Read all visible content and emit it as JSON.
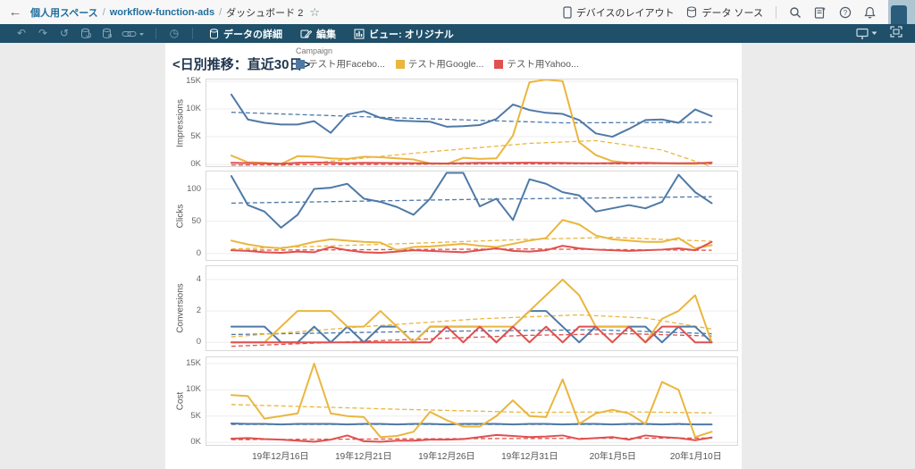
{
  "topbar": {
    "back": "←",
    "breadcrumb": {
      "item1": "個人用スペース",
      "sep1": "/",
      "item2": "workflow-function-ads",
      "sep2": "/",
      "current": "ダッシュボード 2"
    },
    "star": "☆",
    "device_layout": "デバイスのレイアウト",
    "data_source": "データ ソース",
    "icons": [
      "device-icon",
      "datasource-icon",
      "search-icon",
      "notebook-icon",
      "help-icon",
      "bell-icon",
      "avatar"
    ]
  },
  "toolbar": {
    "left_icons": [
      "undo-icon",
      "redo-icon",
      "revert-icon",
      "refresh-datasource-icon",
      "pause-datasource-icon",
      "link-icon",
      "performance-icon"
    ],
    "data_details_label": "データの詳細",
    "edit_label": "編集",
    "view_label": "ビュー: オリジナル",
    "right_icons": [
      "present-icon",
      "fullscreen-icon"
    ],
    "bg_color": "#1f4f69"
  },
  "view": {
    "title": "<日別推移：直近30日>",
    "legend_title": "Campaign",
    "legend": [
      {
        "label": "テスト用Facebo...",
        "color": "#4e79a7"
      },
      {
        "label": "テスト用Google...",
        "color": "#eab63e"
      },
      {
        "label": "テスト用Yahoo...",
        "color": "#e0504e"
      }
    ]
  },
  "x_axis": {
    "labels": [
      "19年12月16日",
      "19年12月21日",
      "19年12月26日",
      "19年12月31日",
      "20年1月5日",
      "20年1月10日"
    ],
    "label_indices": [
      3,
      8,
      13,
      18,
      23,
      28
    ]
  },
  "chart_data": [
    {
      "type": "line",
      "title": "Impressions",
      "ylabel": "Impressions",
      "ylim": [
        -300,
        15300
      ],
      "grid": true,
      "ticks": [
        {
          "value": 15000,
          "label": "15K"
        },
        {
          "value": 10000,
          "label": "10K"
        },
        {
          "value": 5000,
          "label": "5K"
        },
        {
          "value": 0,
          "label": "0K"
        }
      ],
      "series": [
        {
          "name": "テスト用Facebo...",
          "color": "#4e79a7",
          "values": [
            12600,
            8100,
            7500,
            7200,
            7200,
            7800,
            5700,
            9000,
            9600,
            8400,
            7900,
            7800,
            7700,
            6800,
            6900,
            7100,
            8200,
            10800,
            9800,
            9300,
            9100,
            8000,
            5600,
            5000,
            6400,
            8000,
            8100,
            7500,
            9900,
            8700
          ],
          "trend": [
            [
              0,
              9400
            ],
            [
              10,
              8400
            ],
            [
              20,
              7500
            ],
            [
              29,
              7600
            ]
          ]
        },
        {
          "name": "テスト用Google...",
          "color": "#eab63e",
          "values": [
            1600,
            400,
            300,
            100,
            1500,
            1400,
            1100,
            1000,
            1400,
            1300,
            1100,
            900,
            200,
            100,
            1200,
            1000,
            1100,
            5200,
            14800,
            15300,
            15000,
            4000,
            1700,
            600,
            300,
            250,
            200,
            150,
            100,
            400
          ],
          "trend": [
            [
              0,
              -1000
            ],
            [
              6,
              600
            ],
            [
              12,
              2300
            ],
            [
              18,
              3800
            ],
            [
              22,
              4300
            ],
            [
              26,
              2600
            ],
            [
              29,
              -400
            ]
          ]
        },
        {
          "name": "テスト用Yahoo...",
          "color": "#e0504e",
          "values": [
            300,
            250,
            200,
            150,
            300,
            350,
            300,
            250,
            300,
            280,
            260,
            240,
            200,
            180,
            250,
            300,
            280,
            300,
            320,
            300,
            280,
            250,
            220,
            250,
            280,
            300,
            250,
            220,
            250,
            300
          ],
          "trend": [
            [
              0,
              -100
            ],
            [
              15,
              100
            ],
            [
              29,
              150
            ]
          ]
        }
      ]
    },
    {
      "type": "line",
      "title": "Clicks",
      "ylabel": "Clicks",
      "ylim": [
        -10,
        127
      ],
      "grid": true,
      "ticks": [
        {
          "value": 100,
          "label": "100"
        },
        {
          "value": 50,
          "label": "50"
        },
        {
          "value": 0,
          "label": "0"
        }
      ],
      "series": [
        {
          "name": "テスト用Facebo...",
          "color": "#4e79a7",
          "values": [
            120,
            75,
            65,
            40,
            60,
            100,
            102,
            108,
            85,
            80,
            72,
            60,
            85,
            125,
            125,
            73,
            85,
            52,
            115,
            108,
            95,
            90,
            65,
            70,
            75,
            70,
            80,
            122,
            95,
            78
          ],
          "trend": [
            [
              0,
              78
            ],
            [
              15,
              84
            ],
            [
              29,
              88
            ]
          ]
        },
        {
          "name": "テスト用Google...",
          "color": "#eab63e",
          "values": [
            20,
            14,
            10,
            8,
            12,
            18,
            22,
            20,
            18,
            17,
            5,
            10,
            11,
            13,
            15,
            12,
            10,
            15,
            20,
            24,
            52,
            45,
            28,
            22,
            20,
            18,
            18,
            24,
            8,
            13
          ],
          "trend": [
            [
              0,
              7
            ],
            [
              10,
              15
            ],
            [
              18,
              22
            ],
            [
              23,
              25
            ],
            [
              29,
              19
            ]
          ]
        },
        {
          "name": "テスト用Yahoo...",
          "color": "#e0504e",
          "values": [
            5,
            4,
            2,
            1,
            3,
            2,
            10,
            5,
            2,
            1,
            3,
            5,
            4,
            3,
            2,
            5,
            8,
            4,
            3,
            5,
            12,
            8,
            6,
            5,
            4,
            5,
            6,
            8,
            5,
            18
          ],
          "trend": [
            [
              0,
              5
            ],
            [
              18,
              7
            ],
            [
              29,
              5
            ]
          ]
        }
      ]
    },
    {
      "type": "line",
      "title": "Conversions",
      "ylabel": "Conversions",
      "ylim": [
        -0.5,
        4.85
      ],
      "grid": true,
      "ticks": [
        {
          "value": 4,
          "label": "4"
        },
        {
          "value": 2,
          "label": "2"
        },
        {
          "value": 0,
          "label": "0"
        }
      ],
      "series": [
        {
          "name": "テスト用Facebo...",
          "color": "#4e79a7",
          "values": [
            1,
            1,
            1,
            0,
            0,
            1,
            0,
            1,
            0,
            1,
            1,
            0,
            1,
            1,
            1,
            1,
            0,
            1,
            2,
            2,
            1,
            0,
            1,
            1,
            1,
            1,
            0,
            1,
            1,
            0
          ],
          "trend": [
            [
              0,
              0.5
            ],
            [
              12,
              0.7
            ],
            [
              22,
              0.8
            ],
            [
              29,
              0.55
            ]
          ]
        },
        {
          "name": "テスト用Google...",
          "color": "#eab63e",
          "values": [
            0,
            0,
            0,
            1,
            2,
            2,
            2,
            1,
            1,
            2,
            1,
            0,
            1,
            1,
            1,
            1,
            1,
            1,
            2,
            3,
            4,
            3,
            1,
            1,
            1,
            0,
            1.5,
            2,
            3,
            0
          ],
          "trend": [
            [
              0,
              0.35
            ],
            [
              8,
              1.0
            ],
            [
              15,
              1.5
            ],
            [
              21,
              1.75
            ],
            [
              25,
              1.55
            ],
            [
              29,
              0.85
            ]
          ]
        },
        {
          "name": "テスト用Yahoo...",
          "color": "#e0504e",
          "values": [
            0,
            0,
            0,
            0,
            0,
            0,
            0,
            0,
            0,
            0,
            0,
            0,
            0,
            1,
            0,
            1,
            0,
            1,
            0,
            1,
            0,
            1,
            1,
            0,
            1,
            0,
            1,
            1,
            0,
            0
          ],
          "trend": [
            [
              0,
              -0.25
            ],
            [
              10,
              0.15
            ],
            [
              18,
              0.45
            ],
            [
              24,
              0.55
            ],
            [
              29,
              0.4
            ]
          ]
        }
      ]
    },
    {
      "type": "line",
      "title": "Cost",
      "ylabel": "Cost",
      "ylim": [
        -500,
        16200
      ],
      "grid": true,
      "ticks": [
        {
          "value": 15000,
          "label": "15K"
        },
        {
          "value": 10000,
          "label": "10K"
        },
        {
          "value": 5000,
          "label": "5K"
        },
        {
          "value": 0,
          "label": "0K"
        }
      ],
      "series": [
        {
          "name": "テスト用Facebo...",
          "color": "#4e79a7",
          "values": [
            3600,
            3500,
            3500,
            3400,
            3500,
            3500,
            3500,
            3400,
            3500,
            3500,
            3400,
            3500,
            3500,
            3400,
            3500,
            3500,
            3500,
            3400,
            3500,
            3500,
            3400,
            3500,
            3500,
            3400,
            3500,
            3500,
            3400,
            3500,
            3400,
            3400
          ],
          "trend": [
            [
              0,
              3400
            ],
            [
              29,
              3400
            ]
          ]
        },
        {
          "name": "テスト用Google...",
          "color": "#eab63e",
          "values": [
            9000,
            8800,
            4500,
            5000,
            5500,
            15000,
            5500,
            5000,
            4800,
            1000,
            1200,
            2000,
            5800,
            4200,
            3000,
            3000,
            5000,
            8000,
            5000,
            4800,
            12000,
            3500,
            5500,
            6200,
            5500,
            3500,
            11500,
            10000,
            1000,
            2000
          ],
          "trend": [
            [
              0,
              7200
            ],
            [
              10,
              6300
            ],
            [
              18,
              5700
            ],
            [
              24,
              5800
            ],
            [
              29,
              5600
            ]
          ]
        },
        {
          "name": "テスト用Yahoo...",
          "color": "#e0504e",
          "values": [
            700,
            800,
            600,
            500,
            300,
            100,
            500,
            1300,
            200,
            100,
            300,
            300,
            500,
            500,
            600,
            1000,
            1400,
            1200,
            1000,
            1100,
            1300,
            600,
            800,
            1000,
            500,
            1300,
            1000,
            800,
            400,
            900
          ],
          "trend": [
            [
              0,
              500
            ],
            [
              15,
              700
            ],
            [
              29,
              800
            ]
          ]
        }
      ]
    }
  ],
  "layout_rows": [
    {
      "top": 40,
      "h": 99
    },
    {
      "top": 143,
      "h": 101
    },
    {
      "top": 249,
      "h": 96
    },
    {
      "top": 351,
      "h": 100
    }
  ]
}
